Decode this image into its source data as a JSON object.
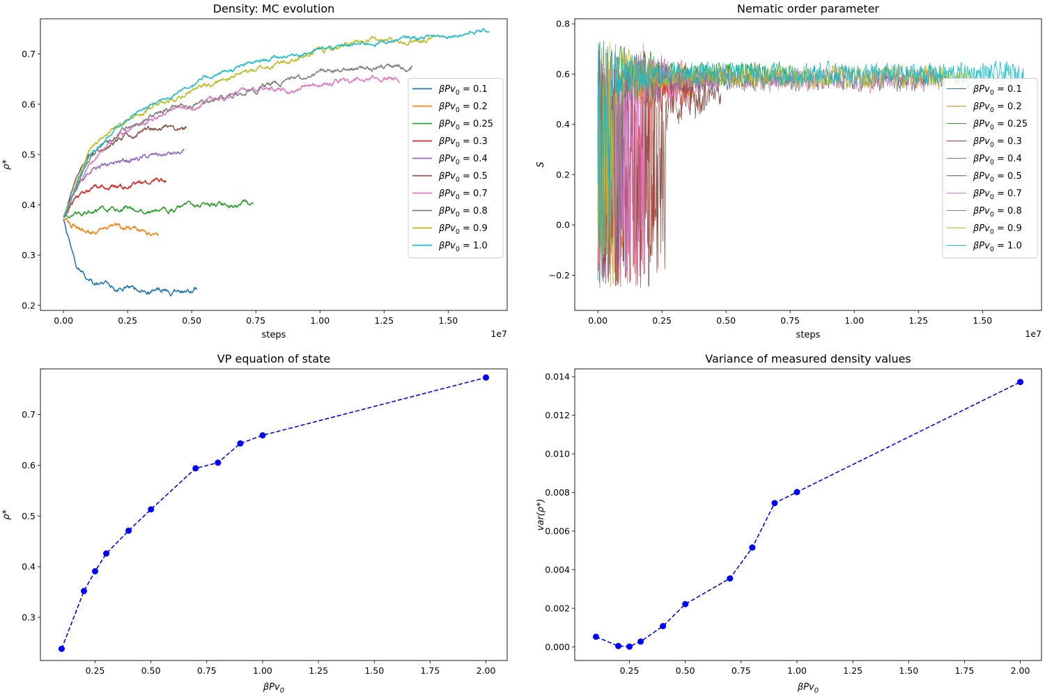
{
  "series_colors": [
    "#1f77b4",
    "#ff7f0e",
    "#2ca02c",
    "#d62728",
    "#9467bd",
    "#8c564b",
    "#e377c2",
    "#7f7f7f",
    "#bcbd22",
    "#17becf"
  ],
  "chart_data": [
    {
      "type": "line",
      "title": "Density: MC evolution",
      "xlabel": "steps",
      "ylabel": "ρ*",
      "xlim": [
        -0.09,
        1.73
      ],
      "ylim": [
        0.19,
        0.77
      ],
      "x_scale_note": "1e7",
      "xticks": [
        "0.00",
        "0.25",
        "0.50",
        "0.75",
        "1.00",
        "1.25",
        "1.50"
      ],
      "xtick_values": [
        0,
        0.25,
        0.5,
        0.75,
        1.0,
        1.25,
        1.5
      ],
      "yticks": [
        "0.2",
        "0.3",
        "0.4",
        "0.5",
        "0.6",
        "0.7"
      ],
      "ytick_values": [
        0.2,
        0.3,
        0.4,
        0.5,
        0.6,
        0.7
      ],
      "legend_position": "center-right",
      "series": [
        {
          "name": "βPv0 = 0.1",
          "label_prefix": "βPv",
          "label_sub": "0",
          "label_suffix": " = 0.1",
          "x": [
            0,
            0.05,
            0.1,
            0.2,
            0.3,
            0.4,
            0.5,
            0.52
          ],
          "y": [
            0.372,
            0.28,
            0.245,
            0.238,
            0.232,
            0.228,
            0.228,
            0.232
          ],
          "noise": 0.004,
          "seed": 11
        },
        {
          "name": "βPv0 = 0.2",
          "label_prefix": "βPv",
          "label_sub": "0",
          "label_suffix": " = 0.2",
          "x": [
            0,
            0.05,
            0.1,
            0.2,
            0.3,
            0.37
          ],
          "y": [
            0.372,
            0.357,
            0.352,
            0.356,
            0.352,
            0.343
          ],
          "noise": 0.004,
          "seed": 12
        },
        {
          "name": "βPv0 = 0.25",
          "label_prefix": "βPv",
          "label_sub": "0",
          "label_suffix": " = 0.25",
          "x": [
            0,
            0.1,
            0.2,
            0.3,
            0.4,
            0.5,
            0.6,
            0.74
          ],
          "y": [
            0.375,
            0.39,
            0.395,
            0.392,
            0.388,
            0.393,
            0.398,
            0.405
          ],
          "noise": 0.004,
          "seed": 13
        },
        {
          "name": "βPv0 = 0.3",
          "label_prefix": "βPv",
          "label_sub": "0",
          "label_suffix": " = 0.3",
          "x": [
            0,
            0.05,
            0.1,
            0.2,
            0.3,
            0.4
          ],
          "y": [
            0.375,
            0.41,
            0.425,
            0.435,
            0.44,
            0.443
          ],
          "noise": 0.004,
          "seed": 14
        },
        {
          "name": "βPv0 = 0.4",
          "label_prefix": "βPv",
          "label_sub": "0",
          "label_suffix": " = 0.4",
          "x": [
            0,
            0.05,
            0.1,
            0.2,
            0.3,
            0.4,
            0.47
          ],
          "y": [
            0.375,
            0.44,
            0.47,
            0.485,
            0.492,
            0.5,
            0.502
          ],
          "noise": 0.004,
          "seed": 15
        },
        {
          "name": "βPv0 = 0.5",
          "label_prefix": "βPv",
          "label_sub": "0",
          "label_suffix": " = 0.5",
          "x": [
            0,
            0.05,
            0.1,
            0.2,
            0.3,
            0.4,
            0.48
          ],
          "y": [
            0.375,
            0.46,
            0.495,
            0.52,
            0.545,
            0.553,
            0.555
          ],
          "noise": 0.004,
          "seed": 16
        },
        {
          "name": "βPv0 = 0.7",
          "label_prefix": "βPv",
          "label_sub": "0",
          "label_suffix": " = 0.7",
          "x": [
            0,
            0.1,
            0.2,
            0.3,
            0.4,
            0.5,
            0.6,
            0.7,
            0.8,
            0.9,
            1.0,
            1.1,
            1.2,
            1.31
          ],
          "y": [
            0.375,
            0.48,
            0.53,
            0.56,
            0.58,
            0.595,
            0.61,
            0.625,
            0.63,
            0.632,
            0.64,
            0.644,
            0.648,
            0.652
          ],
          "noise": 0.004,
          "seed": 17
        },
        {
          "name": "βPv0 = 0.8",
          "label_prefix": "βPv",
          "label_sub": "0",
          "label_suffix": " = 0.8",
          "x": [
            0,
            0.1,
            0.2,
            0.3,
            0.4,
            0.5,
            0.6,
            0.7,
            0.8,
            0.9,
            1.0,
            1.1,
            1.2,
            1.36
          ],
          "y": [
            0.375,
            0.49,
            0.535,
            0.565,
            0.59,
            0.598,
            0.61,
            0.625,
            0.64,
            0.65,
            0.658,
            0.665,
            0.672,
            0.675
          ],
          "noise": 0.004,
          "seed": 18
        },
        {
          "name": "βPv0 = 0.9",
          "label_prefix": "βPv",
          "label_sub": "0",
          "label_suffix": " = 0.9",
          "x": [
            0,
            0.1,
            0.2,
            0.3,
            0.4,
            0.5,
            0.6,
            0.7,
            0.8,
            0.9,
            1.0,
            1.1,
            1.2,
            1.3,
            1.45
          ],
          "y": [
            0.375,
            0.51,
            0.55,
            0.58,
            0.605,
            0.625,
            0.645,
            0.662,
            0.675,
            0.69,
            0.705,
            0.715,
            0.722,
            0.728,
            0.732
          ],
          "noise": 0.004,
          "seed": 19
        },
        {
          "name": "βPv0 = 1.0",
          "label_prefix": "βPv",
          "label_sub": "0",
          "label_suffix": " = 1.0",
          "x": [
            0,
            0.1,
            0.2,
            0.3,
            0.4,
            0.5,
            0.6,
            0.7,
            0.8,
            0.9,
            1.0,
            1.1,
            1.2,
            1.3,
            1.4,
            1.5,
            1.6,
            1.66
          ],
          "y": [
            0.375,
            0.5,
            0.545,
            0.585,
            0.615,
            0.64,
            0.66,
            0.675,
            0.69,
            0.7,
            0.708,
            0.715,
            0.722,
            0.728,
            0.733,
            0.738,
            0.745,
            0.745
          ],
          "noise": 0.003,
          "seed": 20
        }
      ]
    },
    {
      "type": "line",
      "title": "Nematic order parameter",
      "xlabel": "steps",
      "ylabel": "S",
      "xlim": [
        -0.09,
        1.73
      ],
      "ylim": [
        -0.34,
        0.82
      ],
      "x_scale_note": "1e7",
      "xticks": [
        "0.00",
        "0.25",
        "0.50",
        "0.75",
        "1.00",
        "1.25",
        "1.50"
      ],
      "xtick_values": [
        0,
        0.25,
        0.5,
        0.75,
        1.0,
        1.25,
        1.5
      ],
      "yticks": [
        "−0.2",
        "0.0",
        "0.2",
        "0.4",
        "0.6",
        "0.8"
      ],
      "ytick_values": [
        -0.2,
        0.0,
        0.2,
        0.4,
        0.6,
        0.8
      ],
      "legend_position": "center-right",
      "series": [
        {
          "name": "βPv0 = 0.1",
          "label_prefix": "βPv",
          "label_sub": "0",
          "label_suffix": " = 0.1",
          "end": 0.52,
          "settle": 0.03,
          "level": 0.58,
          "seed": 31
        },
        {
          "name": "βPv0 = 0.2",
          "label_prefix": "βPv",
          "label_sub": "0",
          "label_suffix": " = 0.2",
          "end": 0.37,
          "settle": 0.1,
          "level": 0.55,
          "seed": 32
        },
        {
          "name": "βPv0 = 0.25",
          "label_prefix": "βPv",
          "label_sub": "0",
          "label_suffix": " = 0.25",
          "end": 0.74,
          "settle": 0.08,
          "level": 0.6,
          "seed": 33
        },
        {
          "name": "βPv0 = 0.3",
          "label_prefix": "βPv",
          "label_sub": "0",
          "label_suffix": " = 0.3",
          "end": 0.4,
          "settle": 0.22,
          "level": 0.55,
          "seed": 34
        },
        {
          "name": "βPv0 = 0.4",
          "label_prefix": "βPv",
          "label_sub": "0",
          "label_suffix": " = 0.4",
          "end": 0.47,
          "settle": 0.12,
          "level": 0.57,
          "seed": 35
        },
        {
          "name": "βPv0 = 0.5",
          "label_prefix": "βPv",
          "label_sub": "0",
          "label_suffix": " = 0.5",
          "end": 0.48,
          "settle": 0.27,
          "level": 0.5,
          "seed": 36
        },
        {
          "name": "βPv0 = 0.7",
          "label_prefix": "βPv",
          "label_sub": "0",
          "label_suffix": " = 0.7",
          "end": 1.31,
          "settle": 0.18,
          "level": 0.58,
          "seed": 37
        },
        {
          "name": "βPv0 = 0.8",
          "label_prefix": "βPv",
          "label_sub": "0",
          "label_suffix": " = 0.8",
          "end": 1.36,
          "settle": 0.1,
          "level": 0.58,
          "seed": 38
        },
        {
          "name": "βPv0 = 0.9",
          "label_prefix": "βPv",
          "label_sub": "0",
          "label_suffix": " = 0.9",
          "end": 1.45,
          "settle": 0.06,
          "level": 0.59,
          "seed": 39
        },
        {
          "name": "βPv0 = 1.0",
          "label_prefix": "βPv",
          "label_sub": "0",
          "label_suffix": " = 1.0",
          "end": 1.66,
          "settle": 0.05,
          "level": 0.6,
          "seed": 40
        }
      ]
    },
    {
      "type": "line",
      "title": "VP equation of state",
      "xlabel_prefix": "βPv",
      "xlabel_sub": "0",
      "ylabel": "ρ*",
      "xlim": [
        0.005,
        2.095
      ],
      "ylim": [
        0.215,
        0.79
      ],
      "xticks": [
        "0.25",
        "0.50",
        "0.75",
        "1.00",
        "1.25",
        "1.50",
        "1.75",
        "2.00"
      ],
      "xtick_values": [
        0.25,
        0.5,
        0.75,
        1.0,
        1.25,
        1.5,
        1.75,
        2.0
      ],
      "yticks": [
        "0.3",
        "0.4",
        "0.5",
        "0.6",
        "0.7"
      ],
      "ytick_values": [
        0.3,
        0.4,
        0.5,
        0.6,
        0.7
      ],
      "series": [
        {
          "color": "#0000ff",
          "marker": "circle",
          "linestyle": "dashed",
          "x": [
            0.1,
            0.2,
            0.25,
            0.3,
            0.4,
            0.5,
            0.7,
            0.8,
            0.9,
            1.0,
            2.0
          ],
          "y": [
            0.238,
            0.352,
            0.391,
            0.426,
            0.471,
            0.513,
            0.594,
            0.605,
            0.643,
            0.659,
            0.773
          ]
        }
      ]
    },
    {
      "type": "line",
      "title": "Variance of measured density values",
      "xlabel_prefix": "βPv",
      "xlabel_sub": "0",
      "ylabel": "var(ρ*)",
      "xlim": [
        0.005,
        2.095
      ],
      "ylim": [
        -0.0007,
        0.0144
      ],
      "xticks": [
        "0.25",
        "0.50",
        "0.75",
        "1.00",
        "1.25",
        "1.50",
        "1.75",
        "2.00"
      ],
      "xtick_values": [
        0.25,
        0.5,
        0.75,
        1.0,
        1.25,
        1.5,
        1.75,
        2.0
      ],
      "yticks": [
        "0.000",
        "0.002",
        "0.004",
        "0.006",
        "0.008",
        "0.010",
        "0.012",
        "0.014"
      ],
      "ytick_values": [
        0,
        0.002,
        0.004,
        0.006,
        0.008,
        0.01,
        0.012,
        0.014
      ],
      "series": [
        {
          "color": "#0000ff",
          "marker": "circle",
          "linestyle": "dashed",
          "x": [
            0.1,
            0.2,
            0.25,
            0.3,
            0.4,
            0.5,
            0.7,
            0.8,
            0.9,
            1.0,
            2.0
          ],
          "y": [
            0.00053,
            5e-05,
            2e-05,
            0.00028,
            0.00108,
            0.00222,
            0.00355,
            0.00515,
            0.00745,
            0.00802,
            0.01372
          ]
        }
      ]
    }
  ]
}
